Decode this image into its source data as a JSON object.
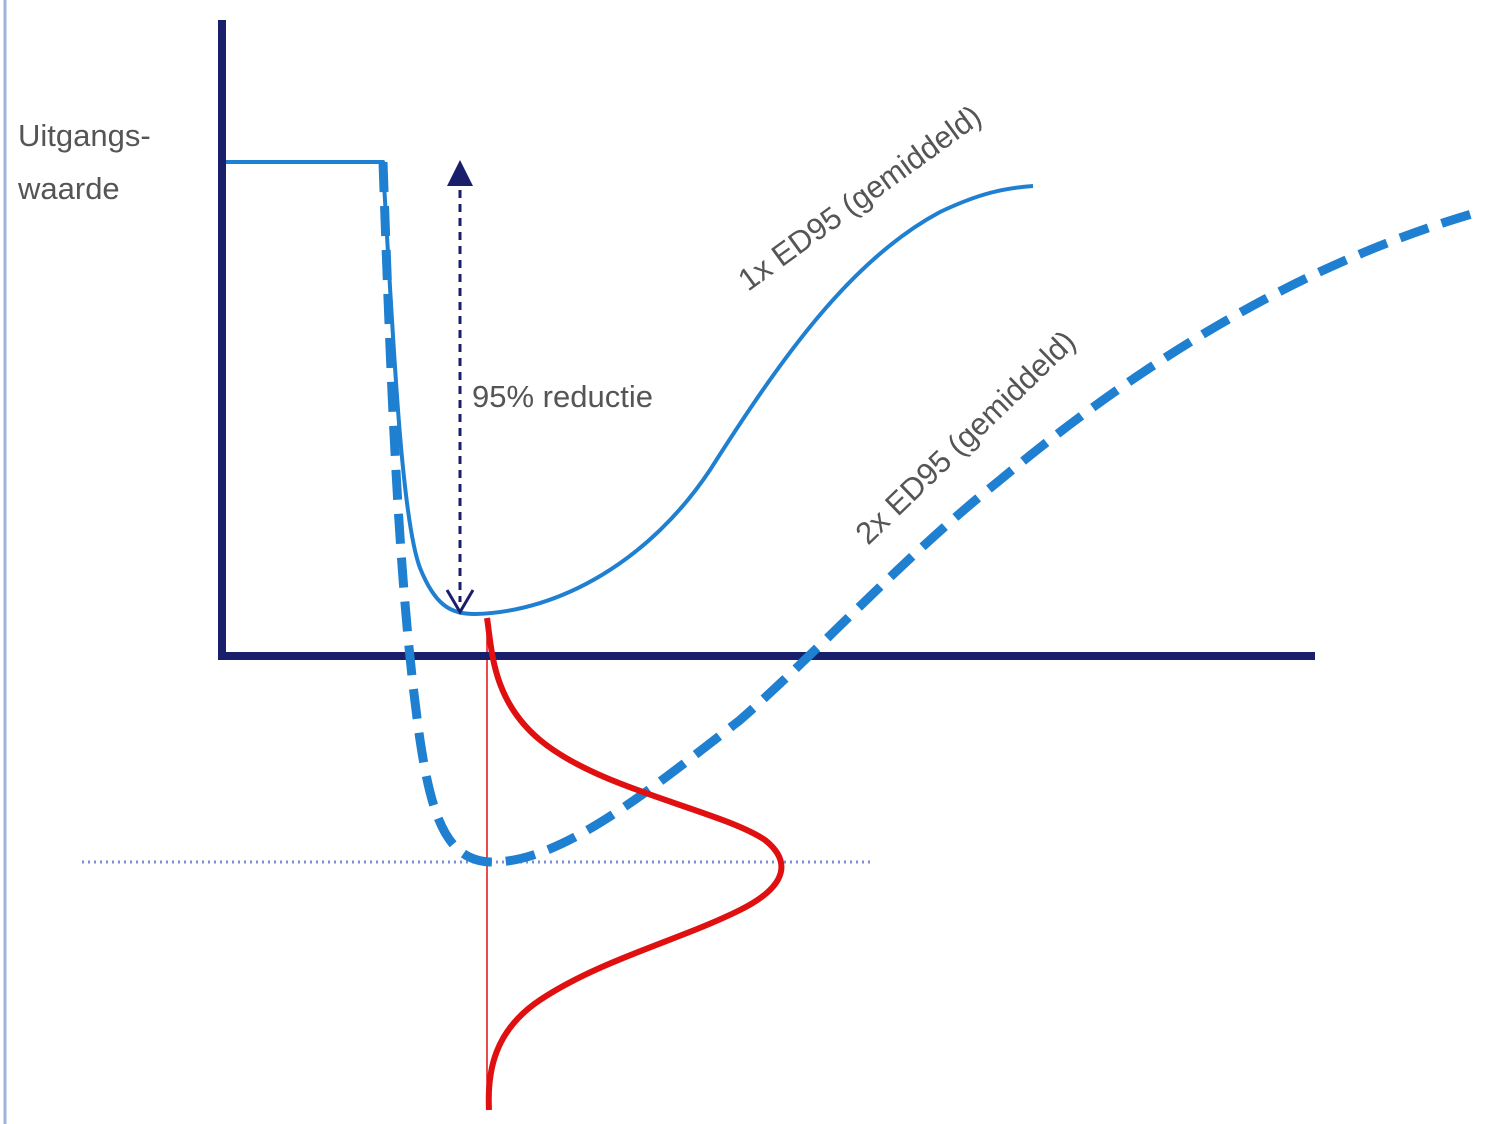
{
  "labels": {
    "y_axis_line1": "Uitgangs-",
    "y_axis_line2": "waarde",
    "reduction": "95% reductie",
    "curve_1x": "1x ED95 (gemiddeld)",
    "curve_2x": "2x ED95 (gemiddeld)"
  },
  "colors": {
    "axis": "#1a1f6b",
    "curve": "#1f7fd0",
    "distribution": "#e01010",
    "arrow": "#1a1f6b",
    "reference_line": "#7a8fd6",
    "text": "#555555",
    "left_border": "#9fb3d9"
  }
}
